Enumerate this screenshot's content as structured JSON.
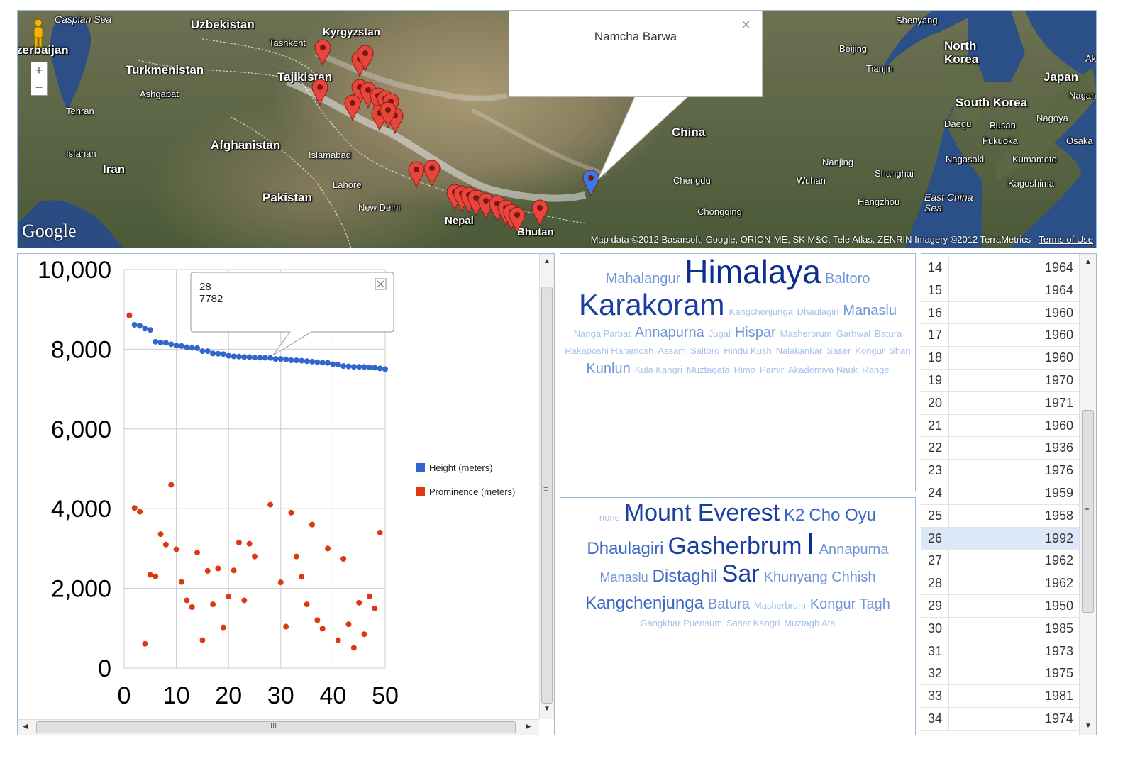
{
  "map": {
    "countries": [
      "Uzbekistan",
      "Kyrgyzstan",
      "Turkmenistan",
      "Tajikistan",
      "Afghanistan",
      "Iran",
      "Pakistan",
      "China",
      "Nepal",
      "Bhutan",
      "North Korea",
      "South Korea",
      "Japan"
    ],
    "partial_labels": [
      "zerbaijan",
      "Ak"
    ],
    "seas": [
      "Caspian Sea",
      "East China Sea"
    ],
    "cities": [
      "Tashkent",
      "Ashgabat",
      "Tehran",
      "Isfahan",
      "Islamabad",
      "Lahore",
      "New Delhi",
      "Beijing",
      "Tianjin",
      "Shenyang",
      "Nanjing",
      "Shanghai",
      "Wuhan",
      "Hangzhou",
      "Chengdu",
      "Chongqing",
      "Daegu",
      "Busan",
      "Fukuoka",
      "Nagasaki",
      "Kumamoto",
      "Kagoshima",
      "Nagoya",
      "Osaka",
      "Nagano"
    ],
    "logo": "Google",
    "attribution": "Map data ©2012 Basarsoft, Google, ORION-ME, SK M&C, Tele Atlas, ZENRIN Imagery ©2012 TerraMetrics -",
    "terms_link": "Terms of Use",
    "zoom_in": "+",
    "zoom_out": "−",
    "info_window": {
      "title": "Namcha Barwa",
      "close": "×"
    },
    "marker_color_default": "#e8453c",
    "marker_color_selected": "#3b78e7"
  },
  "scatter": {
    "legend": [
      {
        "name": "Height (meters)",
        "color": "#3366cc"
      },
      {
        "name": "Prominence (meters)",
        "color": "#dc3912"
      }
    ],
    "tooltip": {
      "x": "28",
      "y": "7782"
    },
    "scroll_grip": "≡",
    "hscroll_grip": "III"
  },
  "chart_data": {
    "type": "scatter",
    "xlim": [
      0,
      50
    ],
    "ylim": [
      0,
      10000
    ],
    "x_ticks": [
      "0",
      "10",
      "20",
      "30",
      "40",
      "50"
    ],
    "y_ticks": [
      "0",
      "2,000",
      "4,000",
      "6,000",
      "8,000",
      "10,000"
    ],
    "grid": true,
    "legend_position": "right",
    "x": [
      1,
      2,
      3,
      4,
      5,
      6,
      7,
      8,
      9,
      10,
      11,
      12,
      13,
      14,
      15,
      16,
      17,
      18,
      19,
      20,
      21,
      22,
      23,
      24,
      25,
      26,
      27,
      28,
      29,
      30,
      31,
      32,
      33,
      34,
      35,
      36,
      37,
      38,
      39,
      40,
      41,
      42,
      43,
      44,
      45,
      46,
      47,
      48,
      49,
      50
    ],
    "series": [
      {
        "name": "Height (meters)",
        "color": "#3366cc",
        "values": [
          8848,
          8611,
          8586,
          8516,
          8485,
          8188,
          8167,
          8163,
          8126,
          8091,
          8080,
          8051,
          8035,
          8027,
          7952,
          7951,
          7893,
          7887,
          7879,
          7836,
          7821,
          7816,
          7804,
          7802,
          7789,
          7788,
          7785,
          7782,
          7756,
          7755,
          7745,
          7723,
          7720,
          7712,
          7700,
          7690,
          7674,
          7665,
          7656,
          7624,
          7619,
          7578,
          7569,
          7559,
          7558,
          7555,
          7546,
          7536,
          7520,
          7499
        ]
      },
      {
        "name": "Prominence (meters)",
        "color": "#dc3912",
        "values": [
          null,
          4017,
          3922,
          610,
          2340,
          2300,
          3360,
          3100,
          4600,
          2980,
          2160,
          1700,
          1530,
          2900,
          700,
          2440,
          1600,
          2500,
          1020,
          1800,
          2450,
          3150,
          1700,
          3120,
          2800,
          null,
          null,
          4100,
          null,
          2150,
          1040,
          3900,
          2800,
          2290,
          1600,
          3600,
          1200,
          990,
          3000,
          null,
          700,
          2740,
          1100,
          510,
          1640,
          850,
          1800,
          1500,
          3400,
          null
        ]
      },
      {
        "name": "",
        "color": "#dc3912",
        "values": [
          8848
        ]
      }
    ]
  },
  "cloud_ranges": {
    "words": [
      {
        "t": "Mahalangur",
        "s": 20,
        "c": "#6f95d6"
      },
      {
        "t": "Himalaya",
        "s": 46,
        "c": "#0b2f8f"
      },
      {
        "t": "Baltoro",
        "s": 20,
        "c": "#6f95d6"
      },
      {
        "t": "Karakoram",
        "s": 42,
        "c": "#1a3fa0"
      },
      {
        "t": "Kangchenjunga",
        "s": 13,
        "c": "#a8c1ea"
      },
      {
        "t": "Dhaulagiri",
        "s": 13,
        "c": "#a8c1ea"
      },
      {
        "t": "Manaslu",
        "s": 20,
        "c": "#6f95d6"
      },
      {
        "t": "Nanga Parbat",
        "s": 13,
        "c": "#a8c1ea"
      },
      {
        "t": "Annapurna",
        "s": 20,
        "c": "#6f95d6"
      },
      {
        "t": "Jugal",
        "s": 13,
        "c": "#a8c1ea"
      },
      {
        "t": "Hispar",
        "s": 20,
        "c": "#6f95d6"
      },
      {
        "t": "Masherbrum",
        "s": 13,
        "c": "#a8c1ea"
      },
      {
        "t": "Garhwal",
        "s": 13,
        "c": "#a8c1ea"
      },
      {
        "t": "Batura",
        "s": 13,
        "c": "#a8c1ea"
      },
      {
        "t": "Rakaposhi Haramosh",
        "s": 13,
        "c": "#a8c1ea"
      },
      {
        "t": "Assam",
        "s": 13,
        "c": "#a8c1ea"
      },
      {
        "t": "Saltoro",
        "s": 13,
        "c": "#a8c1ea"
      },
      {
        "t": "Hindu Kush",
        "s": 13,
        "c": "#a8c1ea"
      },
      {
        "t": "Nalakankar",
        "s": 13,
        "c": "#a8c1ea"
      },
      {
        "t": "Saser",
        "s": 13,
        "c": "#a8c1ea"
      },
      {
        "t": "Kongur",
        "s": 13,
        "c": "#a8c1ea"
      },
      {
        "t": "Shan",
        "s": 13,
        "c": "#a8c1ea"
      },
      {
        "t": "Kunlun",
        "s": 20,
        "c": "#6f95d6"
      },
      {
        "t": "Kula Kangri",
        "s": 13,
        "c": "#a8c1ea"
      },
      {
        "t": "Muztagata",
        "s": 13,
        "c": "#a8c1ea"
      },
      {
        "t": "Rimo",
        "s": 13,
        "c": "#a8c1ea"
      },
      {
        "t": "Pamir",
        "s": 13,
        "c": "#a8c1ea"
      },
      {
        "t": "Akademiya Nauk",
        "s": 13,
        "c": "#a8c1ea"
      },
      {
        "t": "Range",
        "s": 13,
        "c": "#a8c1ea"
      }
    ]
  },
  "cloud_parents": {
    "words": [
      {
        "t": "none",
        "s": 13,
        "c": "#a8c1ea"
      },
      {
        "t": "Mount Everest",
        "s": 34,
        "c": "#1a3fa0"
      },
      {
        "t": "K2",
        "s": 24,
        "c": "#3a66c4"
      },
      {
        "t": "Cho Oyu",
        "s": 24,
        "c": "#3a66c4"
      },
      {
        "t": "Dhaulagiri",
        "s": 24,
        "c": "#3a66c4"
      },
      {
        "t": "Gasherbrum",
        "s": 34,
        "c": "#1a3fa0"
      },
      {
        "t": "I",
        "s": 44,
        "c": "#0b2f8f"
      },
      {
        "t": "Annapurna",
        "s": 20,
        "c": "#6f95d6"
      },
      {
        "t": "Manaslu",
        "s": 18,
        "c": "#6f95d6"
      },
      {
        "t": "Distaghil",
        "s": 24,
        "c": "#3a66c4"
      },
      {
        "t": "Sar",
        "s": 34,
        "c": "#1a3fa0"
      },
      {
        "t": "Khunyang Chhish",
        "s": 20,
        "c": "#6f95d6"
      },
      {
        "t": "Kangchenjunga",
        "s": 24,
        "c": "#3a66c4"
      },
      {
        "t": "Batura",
        "s": 20,
        "c": "#6f95d6"
      },
      {
        "t": "Masherbrum",
        "s": 13,
        "c": "#a8c1ea"
      },
      {
        "t": "Kongur Tagh",
        "s": 20,
        "c": "#6f95d6"
      },
      {
        "t": "Gangkhar Puensum",
        "s": 13,
        "c": "#a8c1ea"
      },
      {
        "t": "Saser Kangri",
        "s": 13,
        "c": "#a8c1ea"
      },
      {
        "t": "Muztagh Ata",
        "s": 13,
        "c": "#a8c1ea"
      }
    ]
  },
  "table": {
    "selected_index": 12,
    "rows": [
      {
        "rank": "14",
        "year": "1964"
      },
      {
        "rank": "15",
        "year": "1964"
      },
      {
        "rank": "16",
        "year": "1960"
      },
      {
        "rank": "17",
        "year": "1960"
      },
      {
        "rank": "18",
        "year": "1960"
      },
      {
        "rank": "19",
        "year": "1970"
      },
      {
        "rank": "20",
        "year": "1971"
      },
      {
        "rank": "21",
        "year": "1960"
      },
      {
        "rank": "22",
        "year": "1936"
      },
      {
        "rank": "23",
        "year": "1976"
      },
      {
        "rank": "24",
        "year": "1959"
      },
      {
        "rank": "25",
        "year": "1958"
      },
      {
        "rank": "26",
        "year": "1992"
      },
      {
        "rank": "27",
        "year": "1962"
      },
      {
        "rank": "28",
        "year": "1962"
      },
      {
        "rank": "29",
        "year": "1950"
      },
      {
        "rank": "30",
        "year": "1985"
      },
      {
        "rank": "31",
        "year": "1973"
      },
      {
        "rank": "32",
        "year": "1975"
      },
      {
        "rank": "33",
        "year": "1981"
      },
      {
        "rank": "34",
        "year": "1974"
      }
    ],
    "scroll_up": "▲",
    "scroll_down": "▼",
    "scroll_grip": "≡"
  }
}
